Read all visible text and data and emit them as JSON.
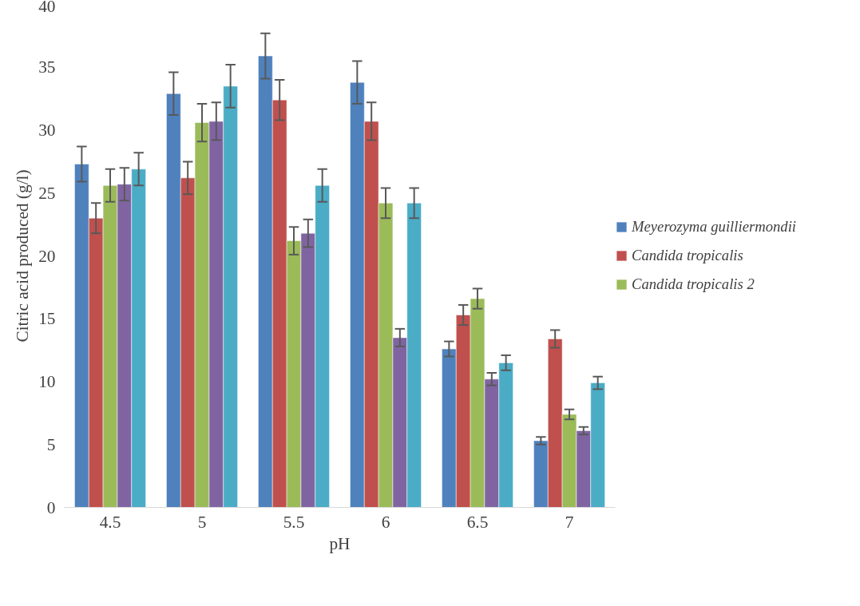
{
  "chart_data": {
    "type": "bar",
    "xlabel": "pH",
    "ylabel": "Citric acid produced (g/l)",
    "categories": [
      "4.5",
      "5",
      "5.5",
      "6",
      "6.5",
      "7"
    ],
    "ylim": [
      0,
      40
    ],
    "yticks": [
      0,
      5,
      10,
      15,
      20,
      25,
      30,
      35,
      40
    ],
    "grid": false,
    "legend": "right",
    "series": [
      {
        "name": "Meyerozyma guilliermondii",
        "color": "#4f81bd",
        "values": [
          27.3,
          32.9,
          35.9,
          33.8,
          12.6,
          5.3
        ],
        "errors": [
          1.4,
          1.7,
          1.8,
          1.7,
          0.6,
          0.3
        ]
      },
      {
        "name": "Candida tropicalis",
        "color": "#c0504d",
        "values": [
          23.0,
          26.2,
          32.4,
          30.7,
          15.3,
          13.4
        ],
        "errors": [
          1.2,
          1.3,
          1.6,
          1.5,
          0.8,
          0.7
        ]
      },
      {
        "name": "Candida tropicalis 2",
        "color": "#9bbb59",
        "values": [
          25.6,
          30.6,
          21.2,
          24.2,
          16.6,
          7.4
        ],
        "errors": [
          1.3,
          1.5,
          1.1,
          1.2,
          0.8,
          0.4
        ]
      },
      {
        "color": "#8064a2",
        "values": [
          25.7,
          30.7,
          21.8,
          13.5,
          10.2,
          6.1
        ],
        "errors": [
          1.3,
          1.5,
          1.1,
          0.7,
          0.5,
          0.3
        ]
      },
      {
        "color": "#4bacc6",
        "values": [
          26.9,
          33.5,
          25.6,
          24.2,
          11.5,
          9.9
        ],
        "errors": [
          1.3,
          1.7,
          1.3,
          1.2,
          0.6,
          0.5
        ]
      }
    ]
  }
}
